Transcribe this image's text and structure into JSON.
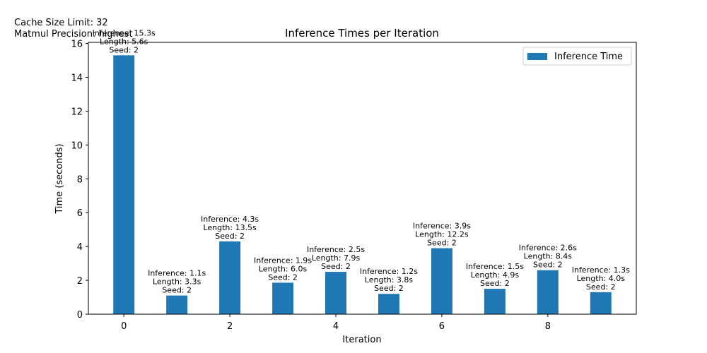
{
  "chart_data": {
    "type": "bar",
    "title": "Inference Times per Iteration",
    "annotations": [
      "Cache Size Limit: 32",
      "Matmul Precision: highest"
    ],
    "xlabel": "Iteration",
    "ylabel": "Time (seconds)",
    "x": [
      0,
      1,
      2,
      3,
      4,
      5,
      6,
      7,
      8,
      9
    ],
    "series": [
      {
        "name": "Inference Time",
        "color": "#1f77b4",
        "values": [
          15.3,
          1.1,
          4.3,
          1.86,
          2.5,
          1.2,
          3.9,
          1.5,
          2.6,
          1.3
        ]
      }
    ],
    "value_labels": [
      [
        "Inference: 15.3s",
        "Length: 5.6s",
        "Seed: 2"
      ],
      [
        "Inference: 1.1s",
        "Length: 3.3s",
        "Seed: 2"
      ],
      [
        "Inference: 4.3s",
        "Length: 13.5s",
        "Seed: 2"
      ],
      [
        "Inference: 1.9s",
        "Length: 6.0s",
        "Seed: 2"
      ],
      [
        "Inference: 2.5s",
        "Length: 7.9s",
        "Seed: 2"
      ],
      [
        "Inference: 1.2s",
        "Length: 3.8s",
        "Seed: 2"
      ],
      [
        "Inference: 3.9s",
        "Length: 12.2s",
        "Seed: 2"
      ],
      [
        "Inference: 1.5s",
        "Length: 4.9s",
        "Seed: 2"
      ],
      [
        "Inference: 2.6s",
        "Length: 8.4s",
        "Seed: 2"
      ],
      [
        "Inference: 1.3s",
        "Length: 4.0s",
        "Seed: 2"
      ]
    ],
    "xlim": [
      -0.67,
      9.67
    ],
    "xticks": [
      0,
      2,
      4,
      6,
      8
    ],
    "ylim": [
      0,
      16.065
    ],
    "yticks": [
      0,
      2,
      4,
      6,
      8,
      10,
      12,
      14,
      16
    ],
    "legend": "upper right"
  }
}
